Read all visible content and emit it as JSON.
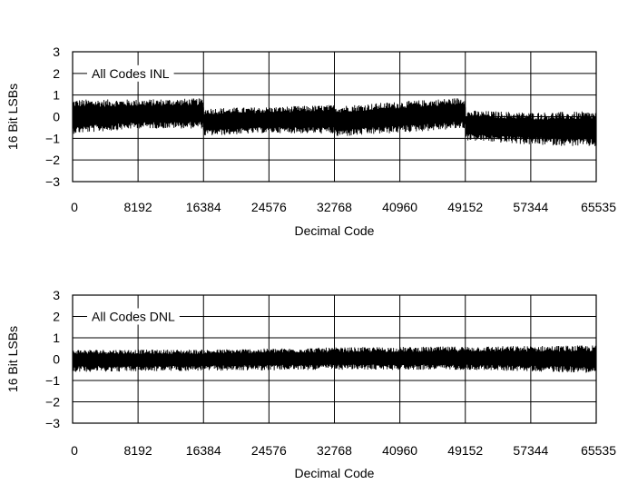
{
  "chart_data": [
    {
      "type": "line",
      "annotation": "All Codes INL",
      "xlabel": "Decimal Code",
      "ylabel": "16 Bit LSBs",
      "xlim": [
        0,
        65535
      ],
      "ylim": [
        -3,
        3
      ],
      "x_ticks": [
        "0",
        "8192",
        "16384",
        "24576",
        "32768",
        "40960",
        "49152",
        "57344",
        "65535"
      ],
      "y_ticks": [
        "3",
        "2",
        "1",
        "0",
        "−1",
        "−2",
        "−3"
      ],
      "grid": true,
      "series": [
        {
          "x": [
            0,
            8192,
            16383,
            16384,
            24576,
            32767,
            32768,
            40960,
            49151,
            49152,
            57344,
            65535
          ],
          "upper": [
            0.8,
            0.8,
            0.85,
            0.4,
            0.45,
            0.55,
            0.5,
            0.7,
            0.9,
            0.3,
            0.2,
            0.25
          ],
          "lower": [
            -0.8,
            -0.55,
            -0.55,
            -0.9,
            -0.75,
            -0.8,
            -0.95,
            -0.75,
            -0.55,
            -1.1,
            -1.3,
            -1.4
          ],
          "center": [
            0.0,
            0.1,
            0.15,
            -0.25,
            -0.15,
            -0.1,
            -0.2,
            0.0,
            0.2,
            -0.4,
            -0.55,
            -0.6
          ]
        }
      ]
    },
    {
      "type": "line",
      "annotation": "All Codes DNL",
      "xlabel": "Decimal Code",
      "ylabel": "16 Bit LSBs",
      "xlim": [
        0,
        65535
      ],
      "ylim": [
        -3,
        3
      ],
      "x_ticks": [
        "0",
        "8192",
        "16384",
        "24576",
        "32768",
        "40960",
        "49152",
        "57344",
        "65535"
      ],
      "y_ticks": [
        "3",
        "2",
        "1",
        "0",
        "−1",
        "−2",
        "−3"
      ],
      "grid": true,
      "series": [
        {
          "x": [
            0,
            16384,
            32768,
            49152,
            65535
          ],
          "upper": [
            0.45,
            0.45,
            0.55,
            0.6,
            0.65
          ],
          "lower": [
            -0.6,
            -0.55,
            -0.5,
            -0.5,
            -0.65
          ],
          "center": [
            0.0,
            0.0,
            0.05,
            0.05,
            0.0
          ]
        }
      ]
    }
  ]
}
